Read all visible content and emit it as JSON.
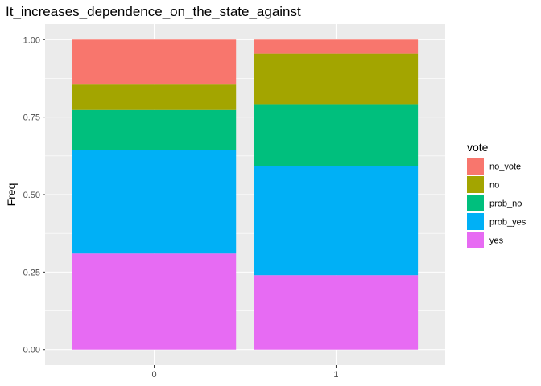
{
  "chart_data": {
    "type": "bar",
    "stacked": true,
    "title": "It_increases_dependence_on_the_state_against",
    "xlabel": "",
    "ylabel": "Freq",
    "categories": [
      "0",
      "1"
    ],
    "ylim": [
      0,
      1
    ],
    "yticks": [
      "0.00",
      "0.25",
      "0.50",
      "0.75",
      "1.00"
    ],
    "grid": true,
    "legend": {
      "title": "vote",
      "position": "right"
    },
    "series": [
      {
        "name": "no_vote",
        "color": "#F8766D",
        "values": [
          0.145,
          0.045
        ]
      },
      {
        "name": "no",
        "color": "#A3A500",
        "values": [
          0.082,
          0.163
        ]
      },
      {
        "name": "prob_no",
        "color": "#00BF7D",
        "values": [
          0.13,
          0.2
        ]
      },
      {
        "name": "prob_yes",
        "color": "#00B0F6",
        "values": [
          0.333,
          0.352
        ]
      },
      {
        "name": "yes",
        "color": "#E76BF3",
        "values": [
          0.31,
          0.24
        ]
      }
    ]
  }
}
